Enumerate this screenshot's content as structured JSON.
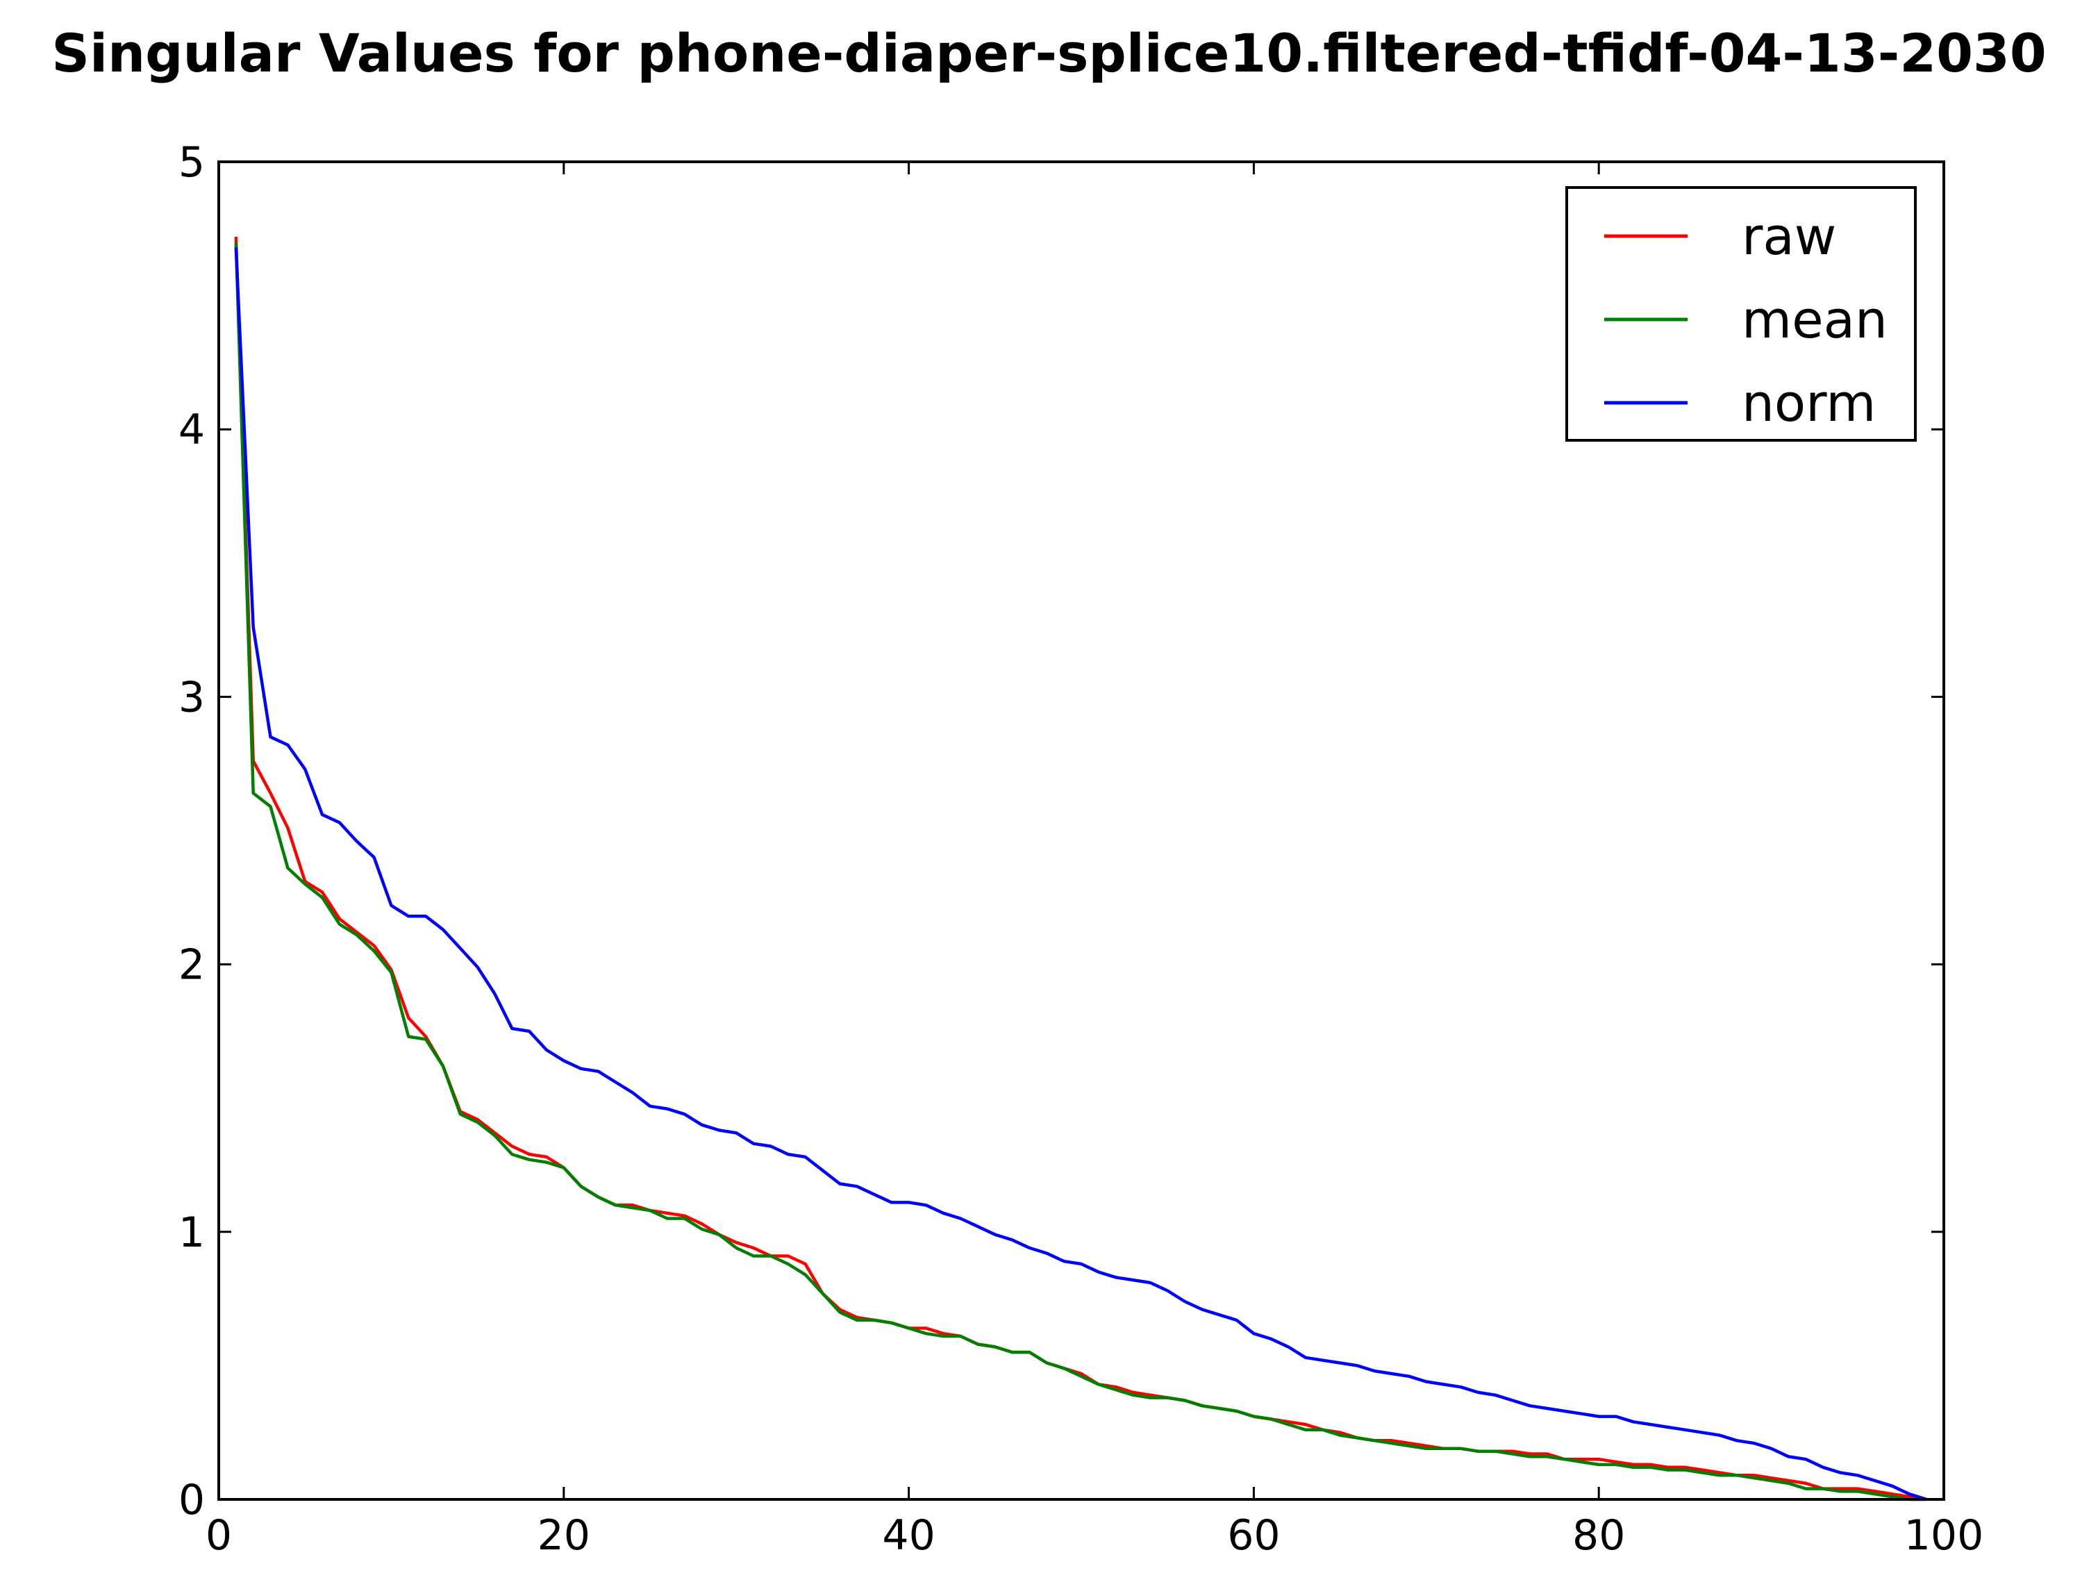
{
  "chart_data": {
    "type": "line",
    "title": "Singular Values for phone-diaper-splice10.filtered-tfidf-04-13-2030",
    "xlabel": "",
    "ylabel": "",
    "xlim": [
      0,
      100
    ],
    "ylim": [
      0,
      5
    ],
    "xticks": [
      0,
      20,
      40,
      60,
      80,
      100
    ],
    "yticks": [
      0,
      1,
      2,
      3,
      4,
      5
    ],
    "grid": false,
    "legend_position": "top-right",
    "series": [
      {
        "name": "raw",
        "color": "#ff0000",
        "values": [
          4.72,
          2.76,
          2.64,
          2.51,
          2.31,
          2.27,
          2.17,
          2.12,
          2.07,
          1.98,
          1.8,
          1.73,
          1.62,
          1.45,
          1.42,
          1.37,
          1.32,
          1.29,
          1.28,
          1.24,
          1.17,
          1.13,
          1.1,
          1.1,
          1.08,
          1.07,
          1.06,
          1.03,
          0.99,
          0.96,
          0.94,
          0.91,
          0.91,
          0.88,
          0.77,
          0.71,
          0.68,
          0.67,
          0.66,
          0.64,
          0.64,
          0.62,
          0.61,
          0.58,
          0.57,
          0.55,
          0.55,
          0.51,
          0.49,
          0.47,
          0.43,
          0.42,
          0.4,
          0.39,
          0.38,
          0.37,
          0.35,
          0.34,
          0.33,
          0.31,
          0.3,
          0.29,
          0.28,
          0.26,
          0.25,
          0.23,
          0.22,
          0.22,
          0.21,
          0.2,
          0.19,
          0.19,
          0.18,
          0.18,
          0.18,
          0.17,
          0.17,
          0.15,
          0.15,
          0.15,
          0.14,
          0.13,
          0.13,
          0.12,
          0.12,
          0.11,
          0.1,
          0.09,
          0.09,
          0.08,
          0.07,
          0.06,
          0.04,
          0.04,
          0.04,
          0.03,
          0.02,
          0.01,
          0.0
        ]
      },
      {
        "name": "mean",
        "color": "#008000",
        "values": [
          4.7,
          2.64,
          2.59,
          2.36,
          2.3,
          2.25,
          2.15,
          2.11,
          2.05,
          1.97,
          1.73,
          1.72,
          1.62,
          1.44,
          1.41,
          1.36,
          1.29,
          1.27,
          1.26,
          1.24,
          1.17,
          1.13,
          1.1,
          1.09,
          1.08,
          1.05,
          1.05,
          1.01,
          0.99,
          0.94,
          0.91,
          0.91,
          0.88,
          0.84,
          0.77,
          0.7,
          0.67,
          0.67,
          0.66,
          0.64,
          0.62,
          0.61,
          0.61,
          0.58,
          0.57,
          0.55,
          0.55,
          0.51,
          0.49,
          0.46,
          0.43,
          0.41,
          0.39,
          0.38,
          0.38,
          0.37,
          0.35,
          0.34,
          0.33,
          0.31,
          0.3,
          0.28,
          0.26,
          0.26,
          0.24,
          0.23,
          0.22,
          0.21,
          0.2,
          0.19,
          0.19,
          0.19,
          0.18,
          0.18,
          0.17,
          0.16,
          0.16,
          0.15,
          0.14,
          0.13,
          0.13,
          0.12,
          0.12,
          0.11,
          0.11,
          0.1,
          0.09,
          0.09,
          0.08,
          0.07,
          0.06,
          0.04,
          0.04,
          0.03,
          0.03,
          0.02,
          0.01,
          0.0,
          0.0
        ]
      },
      {
        "name": "norm",
        "color": "#0000ff",
        "values": [
          4.68,
          3.26,
          2.85,
          2.82,
          2.73,
          2.56,
          2.53,
          2.46,
          2.4,
          2.22,
          2.18,
          2.18,
          2.13,
          2.06,
          1.99,
          1.89,
          1.76,
          1.75,
          1.68,
          1.64,
          1.61,
          1.6,
          1.56,
          1.52,
          1.47,
          1.46,
          1.44,
          1.4,
          1.38,
          1.37,
          1.33,
          1.32,
          1.29,
          1.28,
          1.23,
          1.18,
          1.17,
          1.14,
          1.11,
          1.11,
          1.1,
          1.07,
          1.05,
          1.02,
          0.99,
          0.97,
          0.94,
          0.92,
          0.89,
          0.88,
          0.85,
          0.83,
          0.82,
          0.81,
          0.78,
          0.74,
          0.71,
          0.69,
          0.67,
          0.62,
          0.6,
          0.57,
          0.53,
          0.52,
          0.51,
          0.5,
          0.48,
          0.47,
          0.46,
          0.44,
          0.43,
          0.42,
          0.4,
          0.39,
          0.37,
          0.35,
          0.34,
          0.33,
          0.32,
          0.31,
          0.31,
          0.29,
          0.28,
          0.27,
          0.26,
          0.25,
          0.24,
          0.22,
          0.21,
          0.19,
          0.16,
          0.15,
          0.12,
          0.1,
          0.09,
          0.07,
          0.05,
          0.02,
          0.0
        ]
      }
    ]
  }
}
